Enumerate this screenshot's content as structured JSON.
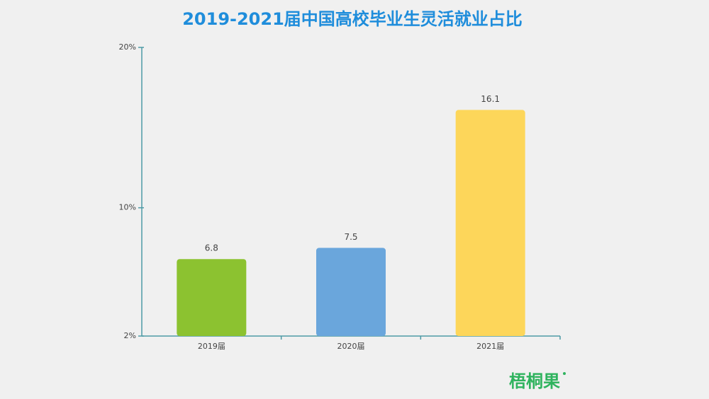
{
  "chart_data": {
    "type": "bar",
    "title": "2019-2021届中国高校毕业生灵活就业占比",
    "categories": [
      "2019届",
      "2020届",
      "2021届"
    ],
    "values": [
      6.8,
      7.5,
      16.1
    ],
    "colors": [
      "#8cc230",
      "#6aa6dc",
      "#fdd65a"
    ],
    "ylim": [
      2,
      20
    ],
    "yticks": [
      {
        "value": 2,
        "label": "2%"
      },
      {
        "value": 10,
        "label": "10%"
      },
      {
        "value": 20,
        "label": "20%"
      }
    ],
    "watermark": "梧桐果"
  }
}
